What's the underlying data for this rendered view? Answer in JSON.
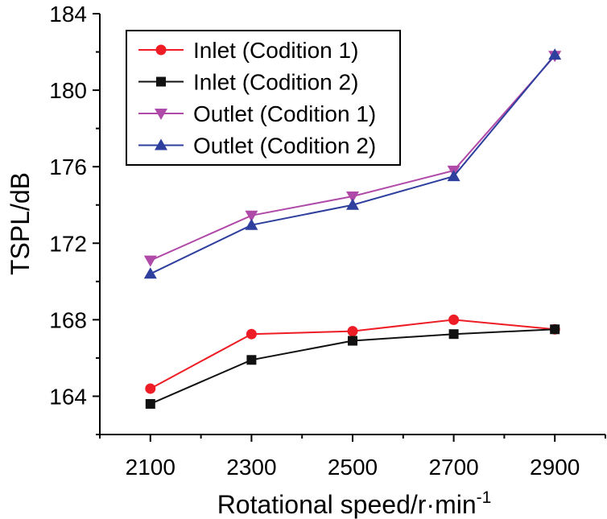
{
  "chart_data": {
    "type": "line",
    "title": "",
    "xlabel": "Rotational speed/r·min",
    "xlabel_sup": "-1",
    "ylabel": "TSPL/dB",
    "x": [
      2100,
      2300,
      2500,
      2700,
      2900
    ],
    "xlim": [
      2000,
      3000
    ],
    "ylim": [
      162,
      184
    ],
    "xticks": [
      2100,
      2300,
      2500,
      2700,
      2900
    ],
    "yticks": [
      164,
      168,
      172,
      176,
      180,
      184
    ],
    "xtick_labels": [
      "2100",
      "2300",
      "2500",
      "2700",
      "2900"
    ],
    "ytick_labels": [
      "164",
      "168",
      "172",
      "176",
      "180",
      "184"
    ],
    "legend_position": "top-left",
    "grid": false,
    "series": [
      {
        "name": "Inlet (Codition 1)",
        "color": "#ee1c24",
        "marker": "circle",
        "values": [
          164.4,
          167.25,
          167.4,
          168.0,
          167.5
        ]
      },
      {
        "name": "Inlet (Codition 2)",
        "color": "#111111",
        "marker": "square",
        "values": [
          163.6,
          165.9,
          166.9,
          167.25,
          167.5
        ]
      },
      {
        "name": "Outlet (Codition 1)",
        "color": "#b04aa8",
        "marker": "triangle-down",
        "values": [
          171.1,
          173.45,
          174.45,
          175.8,
          181.8
        ]
      },
      {
        "name": "Outlet (Codition 2)",
        "color": "#2e3f9e",
        "marker": "triangle-up",
        "values": [
          170.4,
          172.95,
          174.0,
          175.5,
          181.85
        ]
      }
    ]
  }
}
